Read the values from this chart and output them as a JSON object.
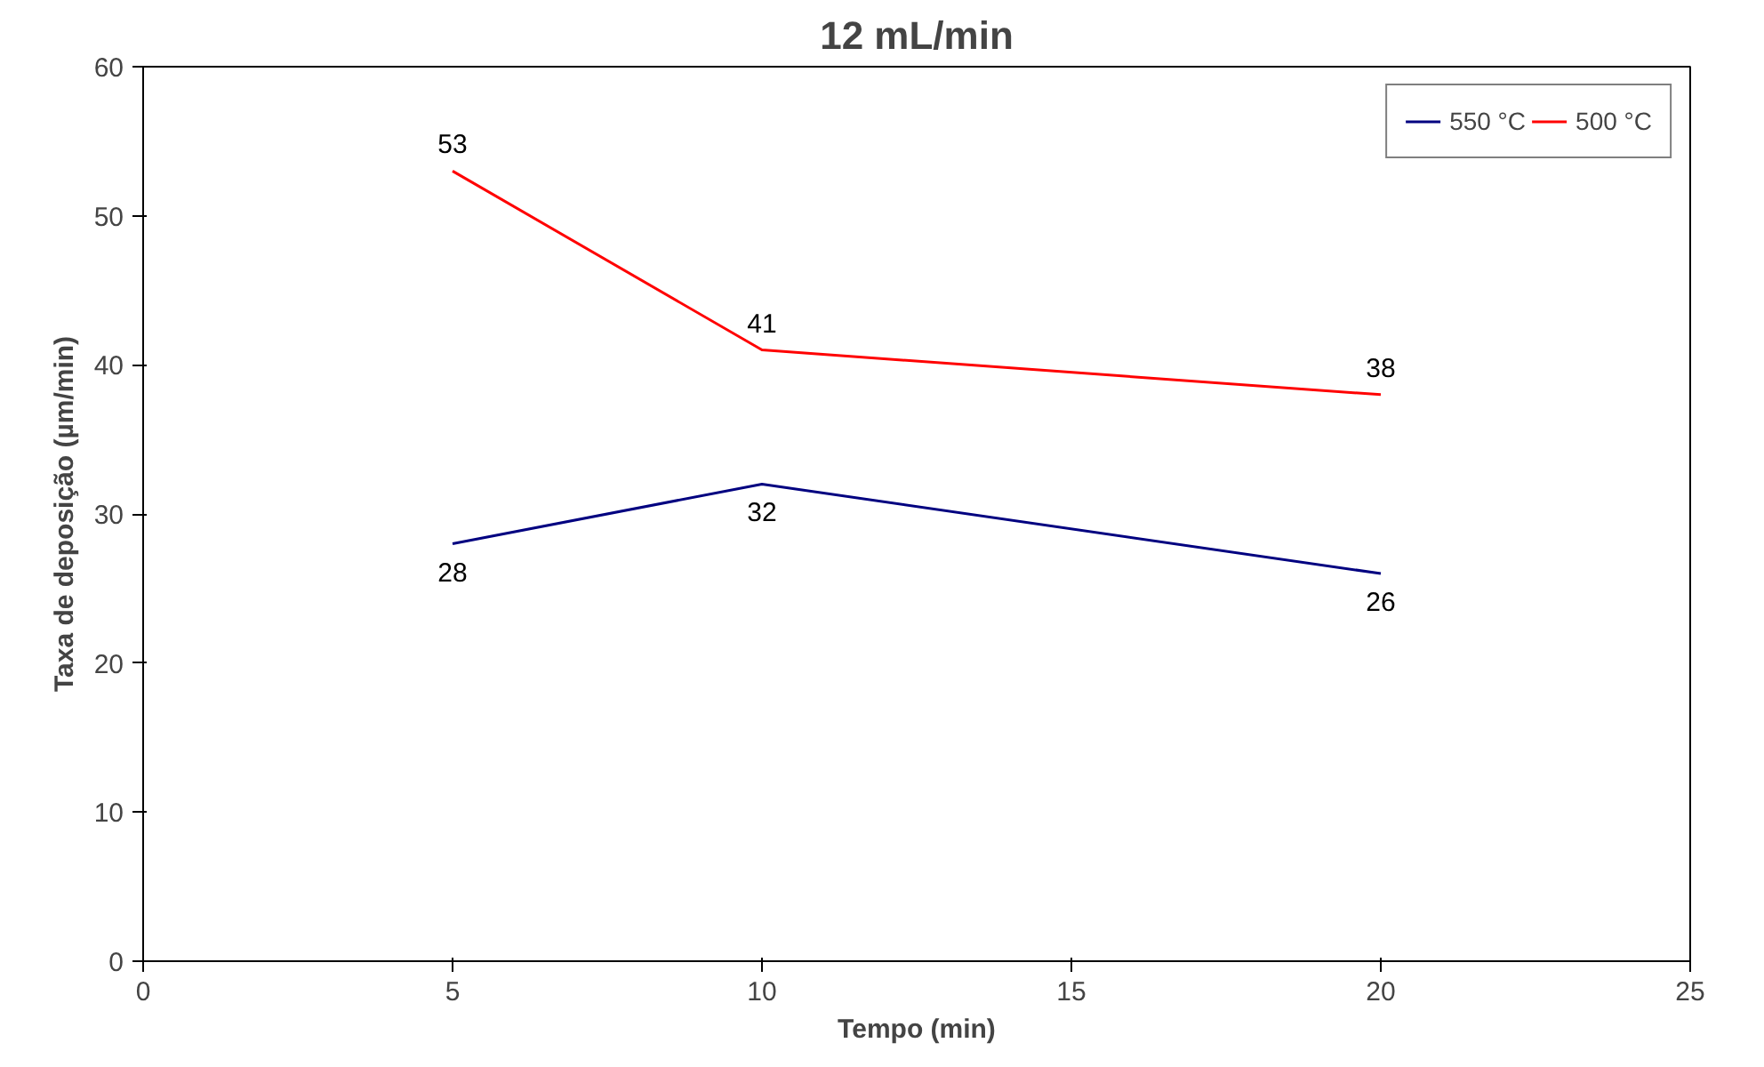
{
  "chart_data": {
    "type": "line",
    "title": "12 mL/min",
    "xlabel": "Tempo (min)",
    "ylabel": "Taxa de deposição (µm/min)",
    "series": [
      {
        "name": "550 °C",
        "color": "#000080",
        "x": [
          5,
          10,
          20
        ],
        "values": [
          28,
          32,
          26
        ]
      },
      {
        "name": "500 °C",
        "color": "#ff0000",
        "x": [
          5,
          10,
          20
        ],
        "values": [
          53,
          41,
          38
        ]
      }
    ],
    "xlim": [
      0,
      25
    ],
    "xticks": [
      0,
      5,
      10,
      15,
      20,
      25
    ],
    "ylim": [
      0,
      60
    ],
    "yticks": [
      0,
      10,
      20,
      30,
      40,
      50,
      60
    ],
    "grid": false,
    "legend": "top right",
    "data_labels": true,
    "marker": "none",
    "line_style": "solid"
  }
}
